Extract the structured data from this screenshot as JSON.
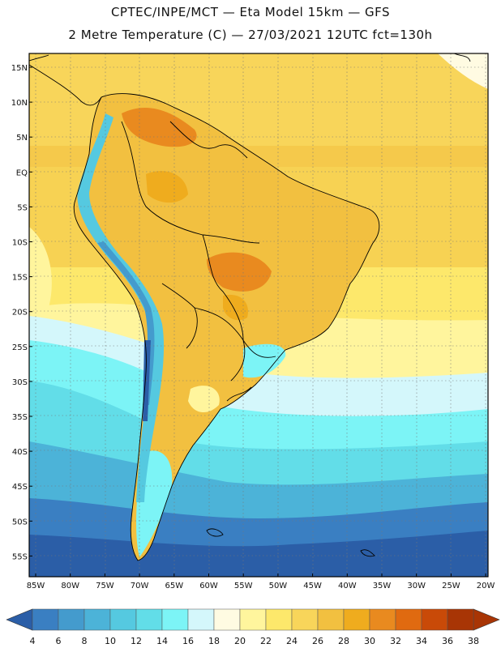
{
  "header": {
    "line1": "CPTEC/INPE/MCT —  Eta Model 15km — GFS",
    "line2": "2 Metre Temperature (C) — 27/03/2021 12UTC fct=130h"
  },
  "map": {
    "lat_labels": [
      "15N",
      "10N",
      "5N",
      "EQ",
      "5S",
      "10S",
      "15S",
      "20S",
      "25S",
      "30S",
      "35S",
      "40S",
      "45S",
      "50S",
      "55S"
    ],
    "lon_labels": [
      "85W",
      "80W",
      "75W",
      "70W",
      "65W",
      "60W",
      "55W",
      "50W",
      "45W",
      "40W",
      "35W",
      "30W",
      "25W",
      "20W"
    ]
  },
  "colorbar": {
    "labels": [
      "4",
      "6",
      "8",
      "10",
      "12",
      "14",
      "16",
      "18",
      "20",
      "22",
      "24",
      "26",
      "28",
      "30",
      "32",
      "34",
      "36",
      "38"
    ],
    "colors": [
      "#2b5ea7",
      "#3a7fc2",
      "#449bcd",
      "#4cb3d8",
      "#55c9e0",
      "#62dde8",
      "#7cf4f6",
      "#d4f7fb",
      "#fffbe2",
      "#fff59d",
      "#fde86b",
      "#f8d55a",
      "#f2c040",
      "#efac1e",
      "#e98a1f",
      "#e06a10",
      "#c94a08",
      "#a83505"
    ]
  }
}
